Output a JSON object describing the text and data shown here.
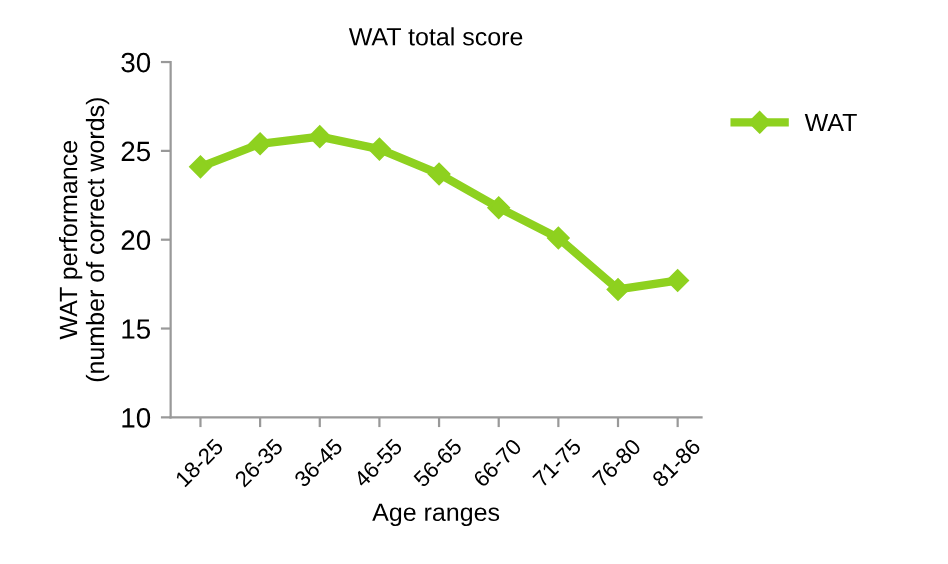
{
  "chart_data": {
    "type": "line",
    "title": "WAT total score",
    "xlabel": "Age ranges",
    "ylabel": "WAT performance\n(number of correct words)",
    "categories": [
      "18-25",
      "26-35",
      "36-45",
      "46-55",
      "56-65",
      "66-70",
      "71-75",
      "76-80",
      "81-86"
    ],
    "series": [
      {
        "name": "WAT",
        "color": "#8ed11f",
        "values": [
          24.1,
          25.4,
          25.8,
          25.1,
          23.7,
          21.8,
          20.1,
          17.2,
          17.7
        ]
      }
    ],
    "ylim": [
      10,
      30
    ],
    "yticks": [
      10,
      15,
      20,
      25,
      30
    ],
    "grid": false,
    "legend": "top right",
    "marker": "diamond",
    "line_style": "solid"
  }
}
